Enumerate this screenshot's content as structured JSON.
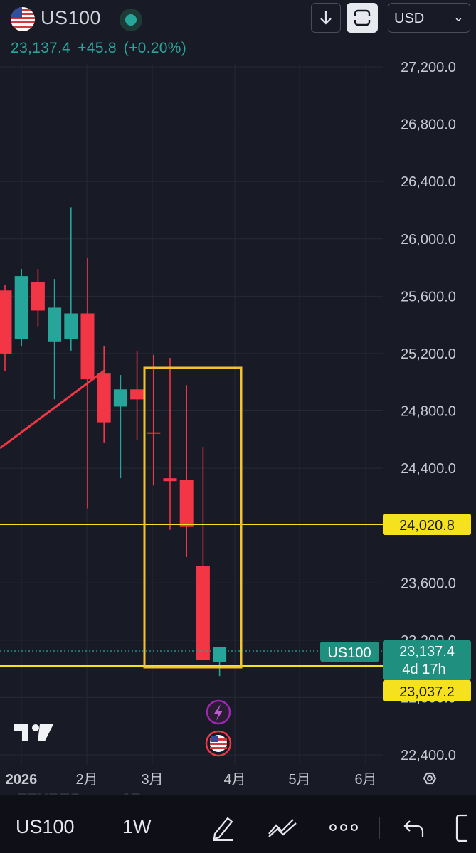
{
  "header": {
    "symbol": "US100",
    "last_price": "23,137.4",
    "change": "+45.8",
    "change_pct": "(+0.20%)",
    "currency": "USD"
  },
  "chart_data": {
    "type": "candlestick",
    "y_ticks": [
      "27,200.0",
      "26,800.0",
      "26,400.0",
      "26,000.0",
      "25,600.0",
      "25,200.0",
      "24,800.0",
      "24,400.0",
      "23,600.0",
      "23,200.0",
      "22,800.0",
      "22,400.0"
    ],
    "y_tick_values": [
      27200,
      26800,
      26400,
      26000,
      25600,
      25200,
      24800,
      24400,
      23600,
      23200,
      22800,
      22400
    ],
    "ylim": [
      22300,
      27400
    ],
    "x_labels": [
      "2026",
      "2月",
      "3月",
      "4月",
      "5月",
      "6月"
    ],
    "candles": [
      {
        "o": 25640,
        "h": 25680,
        "l": 25080,
        "c": 25200
      },
      {
        "o": 25300,
        "h": 25790,
        "l": 25250,
        "c": 25740
      },
      {
        "o": 25700,
        "h": 25790,
        "l": 25390,
        "c": 25500
      },
      {
        "o": 25280,
        "h": 25720,
        "l": 24880,
        "c": 25520
      },
      {
        "o": 25300,
        "h": 26220,
        "l": 25220,
        "c": 25480
      },
      {
        "o": 25480,
        "h": 25870,
        "l": 24120,
        "c": 25020
      },
      {
        "o": 25060,
        "h": 25250,
        "l": 24580,
        "c": 24720
      },
      {
        "o": 24830,
        "h": 25050,
        "l": 24330,
        "c": 24950
      },
      {
        "o": 24950,
        "h": 25220,
        "l": 24600,
        "c": 24880
      },
      {
        "o": 24650,
        "h": 25190,
        "l": 24280,
        "c": 24640
      },
      {
        "o": 24330,
        "h": 25170,
        "l": 23970,
        "c": 24310
      },
      {
        "o": 24320,
        "h": 24980,
        "l": 23780,
        "c": 23990
      },
      {
        "o": 23720,
        "h": 24550,
        "l": 23100,
        "c": 23060
      },
      {
        "o": 23050,
        "h": 23150,
        "l": 22950,
        "c": 23150
      }
    ],
    "horizontal_lines": [
      {
        "label": "24,020.8",
        "value": 24020.8,
        "color": "#f5e11e"
      },
      {
        "label": "23,037.2",
        "value": 23037.2,
        "color": "#f5e11e"
      }
    ],
    "price_label": {
      "symbol": "US100",
      "value": "23,137.4",
      "countdown": "4d 17h",
      "price": 23137.4
    },
    "colors": {
      "up": "#26a69a",
      "down": "#f23645",
      "highlight_box": "#f2c230",
      "trend": "#f23645"
    }
  },
  "toolbar": {
    "symbol": "US100",
    "interval": "1W"
  }
}
